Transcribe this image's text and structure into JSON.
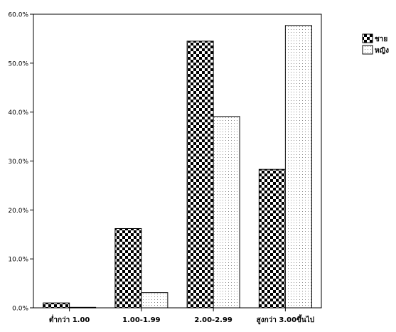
{
  "chart_data": {
    "type": "bar",
    "categories": [
      "ต่ำกว่า 1.00",
      "1.00-1.99",
      "2.00-2.99",
      "สูงกว่า 3.00ขึ้นไป"
    ],
    "series": [
      {
        "name": "ชาย",
        "values": [
          1.0,
          16.2,
          54.5,
          28.3
        ],
        "pattern": "checker"
      },
      {
        "name": "หญิง",
        "values": [
          0.1,
          3.1,
          39.1,
          57.7
        ],
        "pattern": "dots"
      }
    ],
    "ylim": [
      0,
      60
    ],
    "yticks": [
      "0.0%",
      "10.0%",
      "20.0%",
      "30.0%",
      "40.0%",
      "50.0%",
      "60.0%"
    ],
    "ytick_values": [
      0,
      10,
      20,
      30,
      40,
      50,
      60
    ],
    "title": "",
    "xlabel": "",
    "ylabel": "",
    "grid": false,
    "legend_position": "top-right",
    "colors": {
      "checker_dark": "#000000",
      "checker_light": "#ffffff",
      "dot": "#8a8a8a",
      "axis": "#000000"
    }
  }
}
